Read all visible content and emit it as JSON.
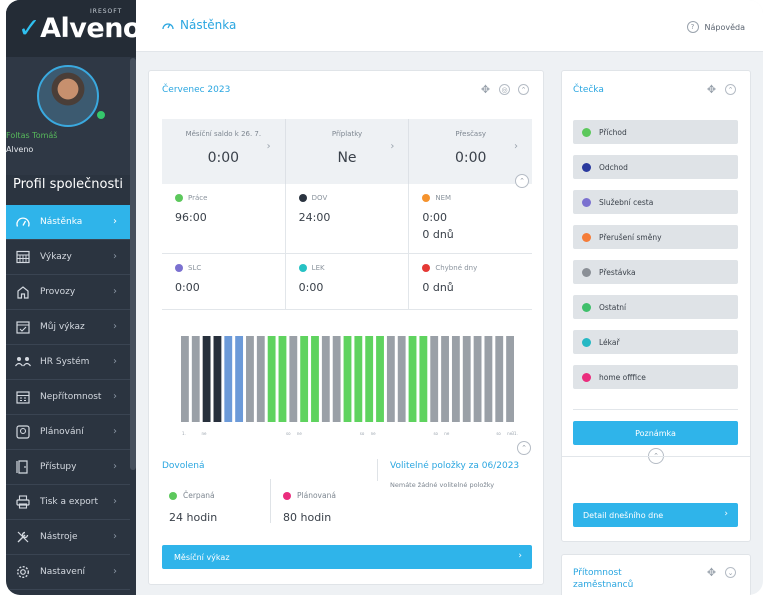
{
  "logo": {
    "brand_a": "A",
    "brand_b": "lveno",
    "check": "✓",
    "sub": "IRESOFT"
  },
  "profile": {
    "name": "Foltas Tomáš",
    "company": "Alveno"
  },
  "company_label": "Profil společnosti",
  "menu": [
    {
      "label": "Nástěnka",
      "icon": "gauge-icon",
      "active": true
    },
    {
      "label": "Výkazy",
      "icon": "calendar-grid-icon",
      "active": false
    },
    {
      "label": "Provozy",
      "icon": "home-icon",
      "active": false
    },
    {
      "label": "Můj výkaz",
      "icon": "calendar-check-icon",
      "active": false
    },
    {
      "label": "HR Systém",
      "icon": "people-icon",
      "active": false
    },
    {
      "label": "Nepřítomnost",
      "icon": "calendar-icon",
      "active": false
    },
    {
      "label": "Plánování",
      "icon": "planner-icon",
      "active": false
    },
    {
      "label": "Přístupy",
      "icon": "door-icon",
      "active": false
    },
    {
      "label": "Tisk a export",
      "icon": "printer-icon",
      "active": false
    },
    {
      "label": "Nástroje",
      "icon": "tools-icon",
      "active": false
    },
    {
      "label": "Nastavení",
      "icon": "gear-icon",
      "active": false
    }
  ],
  "topbar": {
    "title": "Nástěnka",
    "help": "Nápověda"
  },
  "main": {
    "title": "Červenec 2023",
    "top_stats": [
      {
        "label": "Měsíční saldo k 26. 7.",
        "value": "0:00"
      },
      {
        "label": "Příplatky",
        "value": "Ne"
      },
      {
        "label": "Přesčasy",
        "value": "0:00"
      }
    ],
    "row1": [
      {
        "label": "Práce",
        "color": "#5cc85c",
        "value": "96:00",
        "value2": ""
      },
      {
        "label": "DOV",
        "color": "#2b3440",
        "value": "24:00",
        "value2": ""
      },
      {
        "label": "NEM",
        "color": "#f5932e",
        "value": "0:00",
        "value2": "0 dnů"
      }
    ],
    "row2": [
      {
        "label": "SLC",
        "color": "#7b71d0",
        "value": "0:00",
        "value2": ""
      },
      {
        "label": "LEK",
        "color": "#26c2c4",
        "value": "0:00",
        "value2": ""
      },
      {
        "label": "Chybné dny",
        "color": "#e53935",
        "value": "0 dnů",
        "value2": ""
      }
    ],
    "bars": [
      "g",
      "g",
      "k",
      "k",
      "b",
      "b",
      "g",
      "g",
      "G",
      "G",
      "g",
      "G",
      "G",
      "g",
      "g",
      "G",
      "G",
      "G",
      "G",
      "g",
      "g",
      "G",
      "G",
      "g",
      "g",
      "g",
      "g",
      "g",
      "g",
      "g",
      "g"
    ],
    "bar_labels": [
      "1.",
      "ne",
      "so",
      "ne",
      "so",
      "ne",
      "so",
      "ne",
      "so",
      "ne",
      "31."
    ],
    "vacation": {
      "title": "Dovolená",
      "spent_label": "Čerpaná",
      "spent_value": "24 hodin",
      "planned_label": "Plánovaná",
      "planned_value": "80 hodin"
    },
    "optional": {
      "title": "Volitelné položky za 06/2023",
      "empty": "Nemáte žádné volitelné položky"
    },
    "button": "Měsíční výkaz"
  },
  "reader": {
    "title": "Čtečka",
    "items": [
      {
        "label": "Příchod",
        "color": "#5cc85c"
      },
      {
        "label": "Odchod",
        "color": "#2a3a9e"
      },
      {
        "label": "Služební cesta",
        "color": "#7b71d0"
      },
      {
        "label": "Přerušení směny",
        "color": "#f57c38"
      },
      {
        "label": "Přestávka",
        "color": "#8a8f96"
      },
      {
        "label": "Ostatní",
        "color": "#3fbf6b"
      },
      {
        "label": "Lékař",
        "color": "#26b8c4"
      },
      {
        "label": "home offfice",
        "color": "#ea2d7d"
      }
    ],
    "note_button": "Poznámka",
    "detail_button": "Detail dnešního dne"
  },
  "presence": {
    "title": "Přítomnost zaměstnanců"
  },
  "colors": {
    "accent": "#2fb4ea",
    "sidebar": "#2b3440",
    "bar_grey": "#9aa0a7",
    "bar_green": "#5fd35f",
    "bar_dark": "#27303c",
    "bar_blue": "#6c9ad8"
  }
}
